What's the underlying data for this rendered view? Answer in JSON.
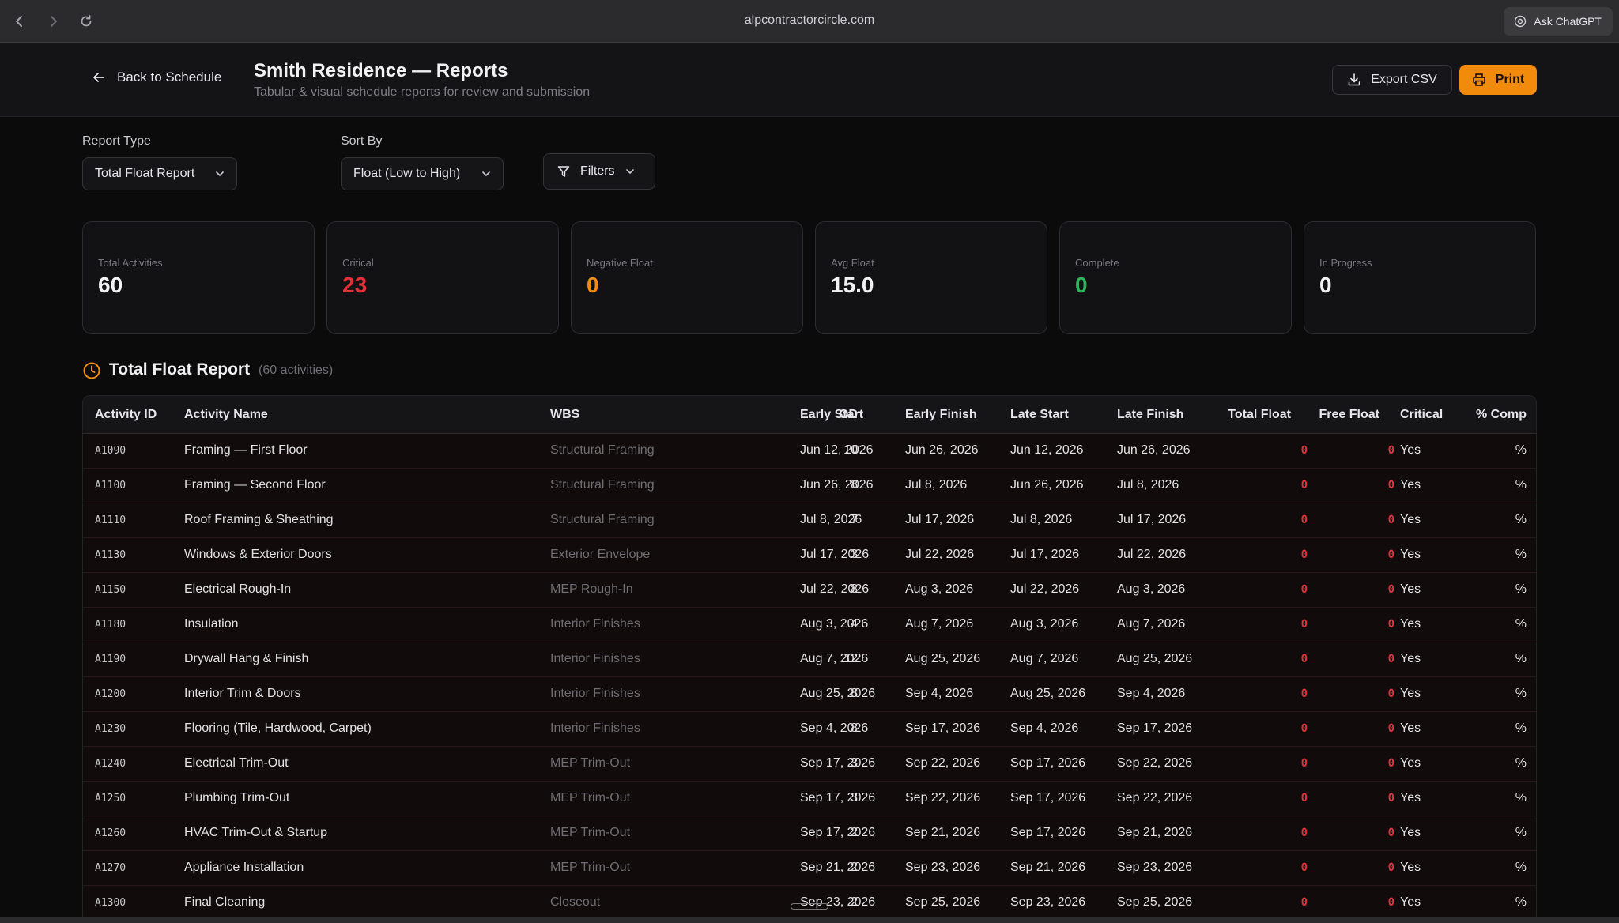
{
  "browser": {
    "url": "alpcontractorcircle.com",
    "ask_label": "Ask ChatGPT"
  },
  "header": {
    "back_label": "Back to Schedule",
    "title": "Smith Residence — Reports",
    "subtitle": "Tabular & visual schedule reports for review and submission",
    "export_label": "Export CSV",
    "print_label": "Print",
    "accent_color": "#f28b0c"
  },
  "controls": {
    "report_type_label": "Report Type",
    "report_type_value": "Total Float Report",
    "sort_by_label": "Sort By",
    "sort_by_value": "Float (Low to High)",
    "filters_label": "Filters"
  },
  "stats": [
    {
      "label": "Total Activities",
      "value": "60",
      "color": "#f2f2f4"
    },
    {
      "label": "Critical",
      "value": "23",
      "color": "#e0303a"
    },
    {
      "label": "Negative Float",
      "value": "0",
      "color": "#f28b0c"
    },
    {
      "label": "Avg Float",
      "value": "15.0",
      "color": "#f2f2f4"
    },
    {
      "label": "Complete",
      "value": "0",
      "color": "#2fb35a"
    },
    {
      "label": "In Progress",
      "value": "0",
      "color": "#f2f2f4"
    }
  ],
  "section": {
    "title": "Total Float Report",
    "count": "(60 activities)"
  },
  "table": {
    "headers": [
      "Activity ID",
      "Activity Name",
      "WBS",
      "OD",
      "Early Start",
      "Early Finish",
      "Late Start",
      "Late Finish",
      "Total Float",
      "Free Float",
      "Critical",
      "% Comp"
    ],
    "rows": [
      [
        "A1090",
        "Framing — First Floor",
        "Structural Framing",
        "10",
        "Jun 12, 2026",
        "Jun 26, 2026",
        "Jun 12, 2026",
        "Jun 26, 2026",
        "0",
        "0",
        "Yes",
        "%"
      ],
      [
        "A1100",
        "Framing — Second Floor",
        "Structural Framing",
        "8",
        "Jun 26, 2026",
        "Jul 8, 2026",
        "Jun 26, 2026",
        "Jul 8, 2026",
        "0",
        "0",
        "Yes",
        "%"
      ],
      [
        "A1110",
        "Roof Framing & Sheathing",
        "Structural Framing",
        "7",
        "Jul 8, 2026",
        "Jul 17, 2026",
        "Jul 8, 2026",
        "Jul 17, 2026",
        "0",
        "0",
        "Yes",
        "%"
      ],
      [
        "A1130",
        "Windows & Exterior Doors",
        "Exterior Envelope",
        "3",
        "Jul 17, 2026",
        "Jul 22, 2026",
        "Jul 17, 2026",
        "Jul 22, 2026",
        "0",
        "0",
        "Yes",
        "%"
      ],
      [
        "A1150",
        "Electrical Rough-In",
        "MEP Rough-In",
        "8",
        "Jul 22, 2026",
        "Aug 3, 2026",
        "Jul 22, 2026",
        "Aug 3, 2026",
        "0",
        "0",
        "Yes",
        "%"
      ],
      [
        "A1180",
        "Insulation",
        "Interior Finishes",
        "4",
        "Aug 3, 2026",
        "Aug 7, 2026",
        "Aug 3, 2026",
        "Aug 7, 2026",
        "0",
        "0",
        "Yes",
        "%"
      ],
      [
        "A1190",
        "Drywall Hang & Finish",
        "Interior Finishes",
        "12",
        "Aug 7, 2026",
        "Aug 25, 2026",
        "Aug 7, 2026",
        "Aug 25, 2026",
        "0",
        "0",
        "Yes",
        "%"
      ],
      [
        "A1200",
        "Interior Trim & Doors",
        "Interior Finishes",
        "8",
        "Aug 25, 2026",
        "Sep 4, 2026",
        "Aug 25, 2026",
        "Sep 4, 2026",
        "0",
        "0",
        "Yes",
        "%"
      ],
      [
        "A1230",
        "Flooring (Tile, Hardwood, Carpet)",
        "Interior Finishes",
        "8",
        "Sep 4, 2026",
        "Sep 17, 2026",
        "Sep 4, 2026",
        "Sep 17, 2026",
        "0",
        "0",
        "Yes",
        "%"
      ],
      [
        "A1240",
        "Electrical Trim-Out",
        "MEP Trim-Out",
        "3",
        "Sep 17, 2026",
        "Sep 22, 2026",
        "Sep 17, 2026",
        "Sep 22, 2026",
        "0",
        "0",
        "Yes",
        "%"
      ],
      [
        "A1250",
        "Plumbing Trim-Out",
        "MEP Trim-Out",
        "3",
        "Sep 17, 2026",
        "Sep 22, 2026",
        "Sep 17, 2026",
        "Sep 22, 2026",
        "0",
        "0",
        "Yes",
        "%"
      ],
      [
        "A1260",
        "HVAC Trim-Out & Startup",
        "MEP Trim-Out",
        "2",
        "Sep 17, 2026",
        "Sep 21, 2026",
        "Sep 17, 2026",
        "Sep 21, 2026",
        "0",
        "0",
        "Yes",
        "%"
      ],
      [
        "A1270",
        "Appliance Installation",
        "MEP Trim-Out",
        "2",
        "Sep 21, 2026",
        "Sep 23, 2026",
        "Sep 21, 2026",
        "Sep 23, 2026",
        "0",
        "0",
        "Yes",
        "%"
      ],
      [
        "A1300",
        "Final Cleaning",
        "Closeout",
        "2",
        "Sep 23, 2026",
        "Sep 25, 2026",
        "Sep 23, 2026",
        "Sep 25, 2026",
        "0",
        "0",
        "Yes",
        "%"
      ]
    ]
  }
}
